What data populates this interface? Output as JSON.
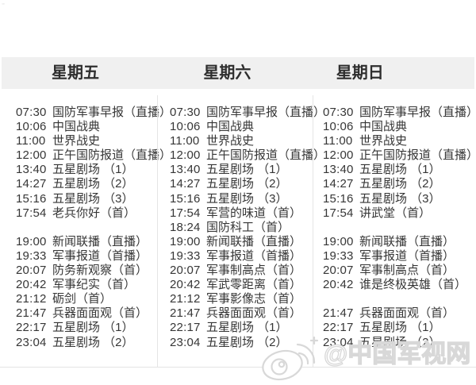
{
  "colors": {
    "header_bg": "#f0f0f0",
    "divider": "#e5e5e5",
    "body_text": "#363636",
    "watermark_outline": "#d8d8d8"
  },
  "table": {
    "columns": [
      {
        "day": "星期五",
        "rows": [
          {
            "time": "07:30",
            "title": "国防军事早报（直播）"
          },
          {
            "time": "10:06",
            "title": "中国战典"
          },
          {
            "time": "11:00",
            "title": "世界战史"
          },
          {
            "time": "12:00",
            "title": "正午国防报道（直播）"
          },
          {
            "time": "13:40",
            "title": "五星剧场 （1）"
          },
          {
            "time": "14:27",
            "title": "五星剧场 （2）"
          },
          {
            "time": "15:16",
            "title": "五星剧场 （3）"
          },
          {
            "time": "17:54",
            "title": "老兵你好（首）"
          },
          {
            "time": "",
            "title": ""
          },
          {
            "time": "19:00",
            "title": "新闻联播（直播）"
          },
          {
            "time": "19:33",
            "title": "军事报道（首播）"
          },
          {
            "time": "20:07",
            "title": "防务新观察（首）"
          },
          {
            "time": "20:42",
            "title": "军事纪实（首）"
          },
          {
            "time": "21:12",
            "title": "砺剑（首）"
          },
          {
            "time": "21:47",
            "title": "兵器面面观（首）"
          },
          {
            "time": "22:17",
            "title": "五星剧场 （1）"
          },
          {
            "time": "23:04",
            "title": "五星剧场 （2）"
          }
        ]
      },
      {
        "day": "星期六",
        "rows": [
          {
            "time": "07:30",
            "title": "国防军事早报（直播）"
          },
          {
            "time": "10:06",
            "title": "中国战典"
          },
          {
            "time": "11:00",
            "title": "世界战史"
          },
          {
            "time": "12:00",
            "title": "正午国防报道（直播）"
          },
          {
            "time": "13:40",
            "title": "五星剧场 （1）"
          },
          {
            "time": "14:27",
            "title": "五星剧场 （2）"
          },
          {
            "time": "15:16",
            "title": "五星剧场 （3）"
          },
          {
            "time": "17:54",
            "title": "军营的味道（首）"
          },
          {
            "time": "18:24",
            "title": "国防科工（首）"
          },
          {
            "time": "19:00",
            "title": "新闻联播（直播）"
          },
          {
            "time": "19:33",
            "title": "军事报道（首播）"
          },
          {
            "time": "20:07",
            "title": "军事制高点（首）"
          },
          {
            "time": "20:42",
            "title": "军武零距离（首）"
          },
          {
            "time": "21:12",
            "title": "军事影像志（首）"
          },
          {
            "time": "21:47",
            "title": "兵器面面观（首）"
          },
          {
            "time": "22:17",
            "title": "五星剧场 （1）"
          },
          {
            "time": "23:04",
            "title": "五星剧场 （2）"
          }
        ]
      },
      {
        "day": "星期日",
        "rows": [
          {
            "time": "07:30",
            "title": "国防军事早报（直播）"
          },
          {
            "time": "10:06",
            "title": "中国战典"
          },
          {
            "time": "11:00",
            "title": "世界战史"
          },
          {
            "time": "12:00",
            "title": "正午国防报道（直播）"
          },
          {
            "time": "13:40",
            "title": "五星剧场 （1）"
          },
          {
            "time": "14:27",
            "title": "五星剧场 （2）"
          },
          {
            "time": "15:16",
            "title": "五星剧场 （3）"
          },
          {
            "time": "17:54",
            "title": "讲武堂（首）"
          },
          {
            "time": "",
            "title": ""
          },
          {
            "time": "19:00",
            "title": "新闻联播（直播）"
          },
          {
            "time": "19:33",
            "title": "军事报道（首播）"
          },
          {
            "time": "20:07",
            "title": "军事制高点（首）"
          },
          {
            "time": "20:42",
            "title": "谁是终极英雄（首）"
          },
          {
            "time": "",
            "title": ""
          },
          {
            "time": "21:47",
            "title": "兵器面面观（首）"
          },
          {
            "time": "22:17",
            "title": "五星剧场 （1）"
          },
          {
            "time": "23:04",
            "title": "五星剧场 （2）"
          }
        ]
      }
    ]
  },
  "watermark": {
    "handle": "@中国军视网",
    "icon": "weibo-icon"
  }
}
